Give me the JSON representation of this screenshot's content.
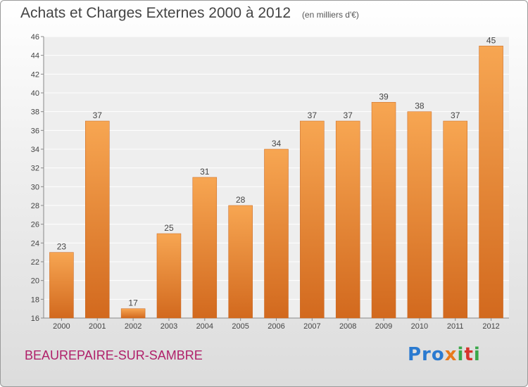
{
  "header": {
    "title": "Achats et Charges Externes 2000 à 2012",
    "subtitle": "(en milliers d'€)"
  },
  "footer": {
    "place": "BEAUREPAIRE-SUR-SAMBRE",
    "logo": [
      "Pro",
      "x",
      "i",
      "t",
      "i"
    ]
  },
  "colors": {
    "bar_top": "#f7a652",
    "bar_bottom": "#d2691e",
    "place_text": "#b0206a"
  },
  "chart_data": {
    "type": "bar",
    "title": "Achats et Charges Externes 2000 à 2012",
    "subtitle": "(en milliers d'€)",
    "categories": [
      "2000",
      "2001",
      "2002",
      "2003",
      "2004",
      "2005",
      "2006",
      "2007",
      "2008",
      "2009",
      "2010",
      "2011",
      "2012"
    ],
    "values": [
      23,
      37,
      17,
      25,
      31,
      28,
      34,
      37,
      37,
      39,
      38,
      37,
      45
    ],
    "data_labels": [
      "23",
      "37",
      "17",
      "25",
      "31",
      "28",
      "34",
      "37",
      "37",
      "39",
      "38",
      "37",
      "45"
    ],
    "ylim": [
      16,
      46
    ],
    "yticks": [
      "16",
      "18",
      "20",
      "22",
      "24",
      "26",
      "28",
      "30",
      "32",
      "34",
      "36",
      "38",
      "40",
      "42",
      "44",
      "46"
    ],
    "grid": true
  }
}
